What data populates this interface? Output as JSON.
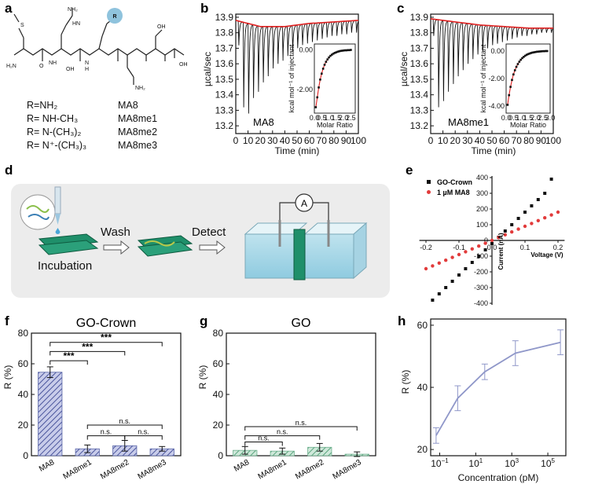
{
  "panels": {
    "a": {
      "label": "a",
      "r_symbol": "R",
      "atoms": {
        "s": "S",
        "h2n": "H₂N",
        "nh2_top": "NH₂",
        "nh_guan": "HN",
        "nh": "NH",
        "n": "N",
        "h": "H",
        "o": "O",
        "oh": "OH",
        "nh2_side": "NH₂"
      },
      "substituents": [
        {
          "r": "R=NH₂",
          "name": "MA8"
        },
        {
          "r": "R= NH-CH₃",
          "name": "MA8me1"
        },
        {
          "r": "R= N-(CH₃)₂",
          "name": "MA8me2"
        },
        {
          "r": "R= N⁺-(CH₃)₃",
          "name": "MA8me3"
        }
      ]
    },
    "b": {
      "label": "b",
      "ylabel": "µcal/sec",
      "xlabel": "Time (min)",
      "annotation": "MA8",
      "xticks": [
        "0",
        "10",
        "20",
        "30",
        "40",
        "50",
        "60",
        "70",
        "80",
        "90",
        "100"
      ],
      "yticks": [
        "13.9",
        "13.8",
        "13.7",
        "13.6",
        "13.5",
        "13.4",
        "13.3",
        "13.2"
      ],
      "inset": {
        "ylabel": "kcal mol⁻¹ of injectant",
        "xlabel": "Molar Ratio",
        "xticks": [
          "0.0",
          "0.5",
          "1.0",
          "1.5",
          "2.0",
          "2.5"
        ],
        "yticks": [
          "0.00",
          "-2.00"
        ]
      }
    },
    "c": {
      "label": "c",
      "ylabel": "µcal/sec",
      "xlabel": "Time (min)",
      "annotation": "MA8me1",
      "xticks": [
        "0",
        "10",
        "20",
        "30",
        "40",
        "50",
        "60",
        "70",
        "80",
        "90",
        "100"
      ],
      "yticks": [
        "13.9",
        "13.8",
        "13.7",
        "13.6",
        "13.5",
        "13.4",
        "13.3",
        "13.2"
      ],
      "inset": {
        "ylabel": "kcal mol⁻¹ of injectant",
        "xlabel": "Molar Ratio",
        "xticks": [
          "0.0",
          "0.5",
          "1.0",
          "1.5",
          "2.0",
          "2.5",
          "3.0"
        ],
        "yticks": [
          "0.00",
          "-2.00",
          "-4.00"
        ]
      }
    },
    "d": {
      "label": "d",
      "incubation": "Incubation",
      "wash": "Wash",
      "detect": "Detect",
      "ammeter": "A"
    },
    "e": {
      "label": "e",
      "xlabel": "Voltage (V)",
      "ylabel": "Current (nA)",
      "xticks": [
        "-0.2",
        "-0.1",
        "0.0",
        "0.1",
        "0.2"
      ],
      "yticks": [
        "400",
        "300",
        "200",
        "100",
        "0",
        "-100",
        "-200",
        "-300",
        "-400"
      ]
    },
    "f": {
      "label": "f",
      "ylabel": "R (%)",
      "yticks": [
        "0",
        "20",
        "40",
        "60",
        "80"
      ],
      "stars": "***",
      "ns": "n.s."
    },
    "g": {
      "label": "g",
      "ylabel": "R (%)",
      "yticks": [
        "0",
        "20",
        "40",
        "60",
        "80"
      ],
      "ns": "n.s."
    },
    "h": {
      "label": "h",
      "ylabel": "R (%)",
      "xlabel": "Concentration (pM)",
      "yticks": [
        "20",
        "40",
        "60"
      ]
    }
  },
  "chart_data": [
    {
      "id": "b",
      "type": "line",
      "title": "MA8",
      "xlabel": "Time (min)",
      "ylabel": "µcal/sec",
      "xlim": [
        0,
        100
      ],
      "ylim": [
        13.15,
        13.92
      ],
      "injection_times": [
        2,
        6,
        10,
        14,
        18,
        22,
        26,
        30,
        34,
        38,
        42,
        46,
        50,
        54,
        58,
        62,
        66,
        70,
        74,
        78,
        82,
        86,
        90,
        94,
        98
      ],
      "peak_minima": [
        13.72,
        13.32,
        13.28,
        13.38,
        13.42,
        13.48,
        13.52,
        13.57,
        13.6,
        13.62,
        13.65,
        13.68,
        13.7,
        13.72,
        13.73,
        13.74,
        13.75,
        13.76,
        13.77,
        13.78,
        13.78,
        13.79,
        13.79,
        13.8,
        13.8
      ],
      "baseline": {
        "x": [
          0,
          20,
          40,
          60,
          80,
          100
        ],
        "y": [
          13.88,
          13.84,
          13.84,
          13.86,
          13.87,
          13.88
        ]
      },
      "inset": {
        "xlabel": "Molar Ratio",
        "ylabel": "kcal mol⁻¹ of injectant",
        "xlim": [
          0,
          2.8
        ],
        "ylim": [
          -3.2,
          0.3
        ],
        "x": [
          0.1,
          0.2,
          0.3,
          0.4,
          0.5,
          0.6,
          0.7,
          0.8,
          0.9,
          1.0,
          1.1,
          1.2,
          1.3,
          1.4,
          1.5,
          1.6,
          1.7,
          1.8,
          1.9,
          2.0,
          2.1,
          2.2,
          2.3,
          2.4,
          2.5
        ],
        "y": [
          -2.9,
          -2.4,
          -1.9,
          -1.5,
          -1.2,
          -0.95,
          -0.75,
          -0.6,
          -0.48,
          -0.38,
          -0.3,
          -0.24,
          -0.19,
          -0.15,
          -0.12,
          -0.09,
          -0.07,
          -0.05,
          -0.04,
          -0.03,
          -0.02,
          -0.02,
          -0.01,
          -0.01,
          0.0
        ]
      }
    },
    {
      "id": "c",
      "type": "line",
      "title": "MA8me1",
      "xlabel": "Time (min)",
      "ylabel": "µcal/sec",
      "xlim": [
        0,
        100
      ],
      "ylim": [
        13.15,
        13.92
      ],
      "injection_times": [
        2,
        6,
        10,
        14,
        18,
        22,
        26,
        30,
        34,
        38,
        42,
        46,
        50,
        54,
        58,
        62,
        66,
        70,
        74,
        78,
        82,
        86,
        90,
        94,
        98
      ],
      "peak_minima": [
        13.78,
        13.32,
        13.36,
        13.42,
        13.47,
        13.52,
        13.56,
        13.6,
        13.63,
        13.66,
        13.68,
        13.7,
        13.72,
        13.73,
        13.74,
        13.75,
        13.76,
        13.77,
        13.78,
        13.78,
        13.79,
        13.79,
        13.8,
        13.8,
        13.8
      ],
      "baseline": {
        "x": [
          0,
          20,
          40,
          60,
          80,
          100
        ],
        "y": [
          13.89,
          13.87,
          13.85,
          13.84,
          13.83,
          13.83
        ]
      },
      "inset": {
        "xlabel": "Molar Ratio",
        "ylabel": "kcal mol⁻¹ of injectant",
        "xlim": [
          0,
          3.0
        ],
        "ylim": [
          -4.5,
          0.5
        ],
        "x": [
          0.1,
          0.2,
          0.3,
          0.4,
          0.5,
          0.6,
          0.7,
          0.8,
          0.9,
          1.0,
          1.1,
          1.2,
          1.3,
          1.4,
          1.5,
          1.6,
          1.7,
          1.8,
          1.9,
          2.0,
          2.1,
          2.2,
          2.3,
          2.4,
          2.5,
          2.6,
          2.7,
          2.8
        ],
        "y": [
          -3.9,
          -3.2,
          -2.6,
          -2.1,
          -1.7,
          -1.4,
          -1.15,
          -0.95,
          -0.78,
          -0.64,
          -0.52,
          -0.43,
          -0.35,
          -0.28,
          -0.23,
          -0.19,
          -0.15,
          -0.12,
          -0.1,
          -0.08,
          -0.06,
          -0.05,
          -0.04,
          -0.03,
          -0.02,
          -0.02,
          -0.01,
          -0.01
        ]
      }
    },
    {
      "id": "e",
      "type": "scatter",
      "xlabel": "Voltage (V)",
      "ylabel": "Current (nA)",
      "xlim": [
        -0.2,
        0.2
      ],
      "ylim": [
        -400,
        400
      ],
      "series": [
        {
          "name": "GO-Crown",
          "color": "#111111",
          "x": [
            -0.18,
            -0.16,
            -0.14,
            -0.12,
            -0.1,
            -0.08,
            -0.06,
            -0.04,
            -0.02,
            0.0,
            0.02,
            0.04,
            0.06,
            0.08,
            0.1,
            0.12,
            0.14,
            0.16,
            0.18
          ],
          "y": [
            -380,
            -340,
            -300,
            -260,
            -220,
            -180,
            -140,
            -100,
            -60,
            -20,
            20,
            60,
            100,
            140,
            180,
            220,
            260,
            300,
            390
          ]
        },
        {
          "name": "1 µM MA8",
          "color": "#e23b3b",
          "x": [
            -0.2,
            -0.18,
            -0.16,
            -0.14,
            -0.12,
            -0.1,
            -0.08,
            -0.06,
            -0.04,
            -0.02,
            0.0,
            0.02,
            0.04,
            0.06,
            0.08,
            0.1,
            0.12,
            0.14,
            0.16,
            0.18,
            0.2
          ],
          "y": [
            -180,
            -162,
            -144,
            -126,
            -108,
            -90,
            -72,
            -54,
            -36,
            -18,
            0,
            18,
            36,
            54,
            72,
            90,
            108,
            126,
            144,
            162,
            180
          ]
        }
      ]
    },
    {
      "id": "f",
      "type": "bar",
      "title": "GO-Crown",
      "ylabel": "R (%)",
      "ylim": [
        0,
        80
      ],
      "categories": [
        "MA8",
        "MA8me1",
        "MA8me2",
        "MA8me3"
      ],
      "values": [
        54.5,
        4.5,
        6.5,
        4.5
      ],
      "errors": [
        3.5,
        2.5,
        3.5,
        1.5
      ],
      "color": "#5a66a8",
      "significance": [
        {
          "from": 0,
          "to": 1,
          "label": "***"
        },
        {
          "from": 0,
          "to": 2,
          "label": "***"
        },
        {
          "from": 0,
          "to": 3,
          "label": "***"
        },
        {
          "from": 1,
          "to": 2,
          "label": "n.s."
        },
        {
          "from": 2,
          "to": 3,
          "label": "n.s."
        },
        {
          "from": 1,
          "to": 3,
          "label": "n.s."
        }
      ]
    },
    {
      "id": "g",
      "type": "bar",
      "title": "GO",
      "ylabel": "R (%)",
      "ylim": [
        0,
        80
      ],
      "categories": [
        "MA8",
        "MA8me1",
        "MA8me2",
        "MA8me3"
      ],
      "values": [
        3.5,
        3.0,
        5.5,
        1.0
      ],
      "errors": [
        2.5,
        2.0,
        2.5,
        1.5
      ],
      "color": "#6cae8c",
      "significance": [
        {
          "from": 0,
          "to": 1,
          "label": "n.s."
        },
        {
          "from": 0,
          "to": 2,
          "label": "n.s."
        },
        {
          "from": 0,
          "to": 3,
          "label": "n.s."
        }
      ]
    },
    {
      "id": "h",
      "type": "line",
      "xlabel": "Concentration (pM)",
      "ylabel": "R (%)",
      "xscale": "log",
      "xlim_log10": [
        -1.5,
        6.0
      ],
      "ylim": [
        18,
        62
      ],
      "xtick_exponents": [
        -1,
        1,
        3,
        5
      ],
      "x_log10": [
        -1.2,
        0,
        1.5,
        3.2,
        5.7
      ],
      "y": [
        24.5,
        36.5,
        45,
        51,
        54.5
      ],
      "errors": [
        2.5,
        4,
        2.5,
        4,
        4
      ],
      "color": "#8f97c9"
    }
  ]
}
